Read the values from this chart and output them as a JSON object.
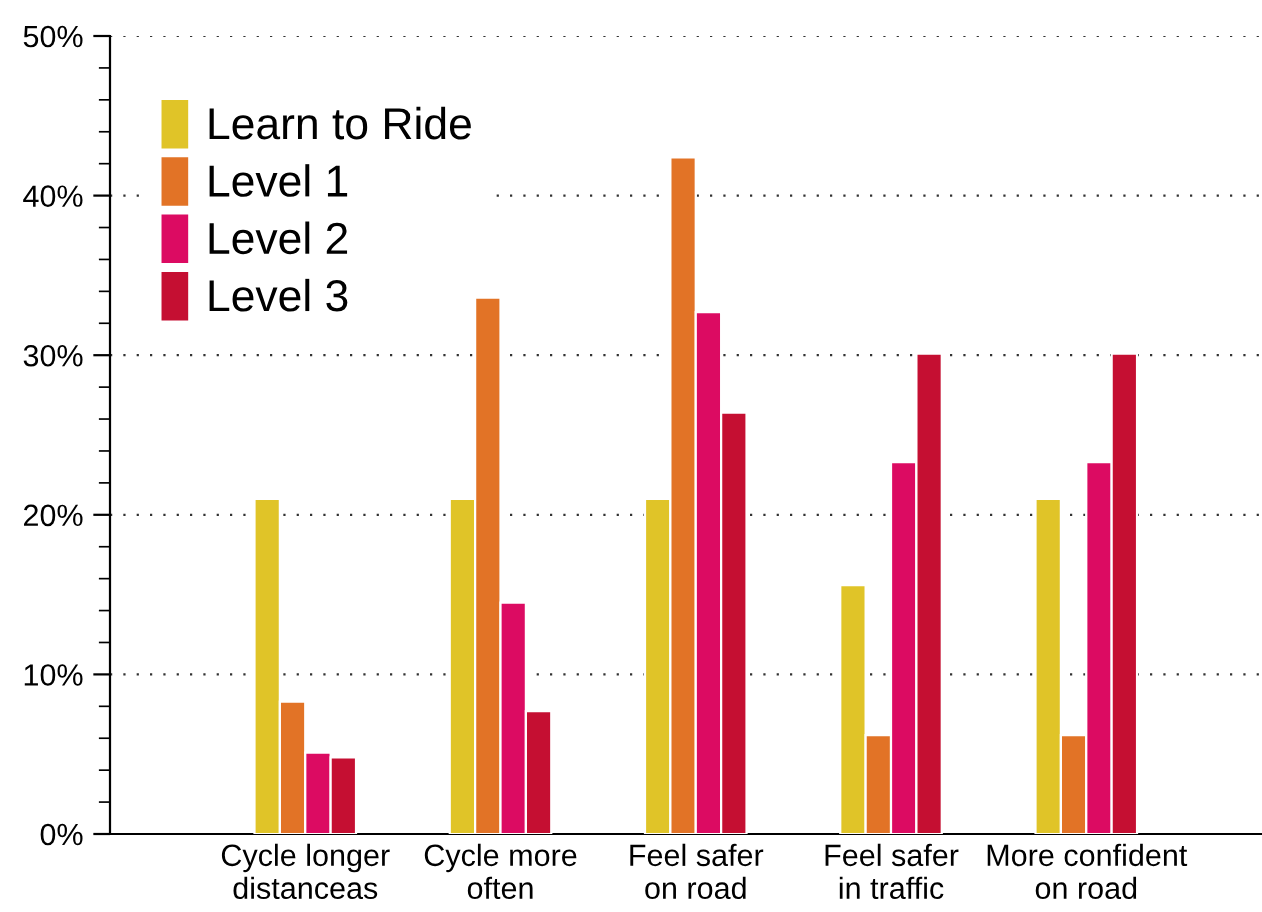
{
  "chart_data": {
    "type": "bar",
    "categories": [
      "Cycle longer\ndistanceas",
      "Cycle more\noften",
      "Feel safer\non road",
      "Feel safer\nin traffic",
      "More confident\non road"
    ],
    "series": [
      {
        "name": "Learn to Ride",
        "color": "#e0c428",
        "values": [
          21,
          21,
          21,
          15.6,
          21
        ]
      },
      {
        "name": "Level 1",
        "color": "#e27326",
        "values": [
          8.3,
          33.6,
          42.4,
          6.2,
          6.2
        ]
      },
      {
        "name": "Level 2",
        "color": "#dc0b62",
        "values": [
          5.1,
          14.5,
          32.7,
          23.3,
          23.3
        ]
      },
      {
        "name": "Level 3",
        "color": "#c50f32",
        "values": [
          4.8,
          7.7,
          26.4,
          30.1,
          30.1
        ]
      }
    ],
    "ylim": [
      0,
      50
    ],
    "yticks": [
      {
        "value": 0,
        "label": "0%"
      },
      {
        "value": 10,
        "label": "10%"
      },
      {
        "value": 20,
        "label": "20%"
      },
      {
        "value": 30,
        "label": "30%"
      },
      {
        "value": 40,
        "label": "40%"
      },
      {
        "value": 50,
        "label": "50%"
      }
    ],
    "grid": "y",
    "legend": "top left"
  }
}
